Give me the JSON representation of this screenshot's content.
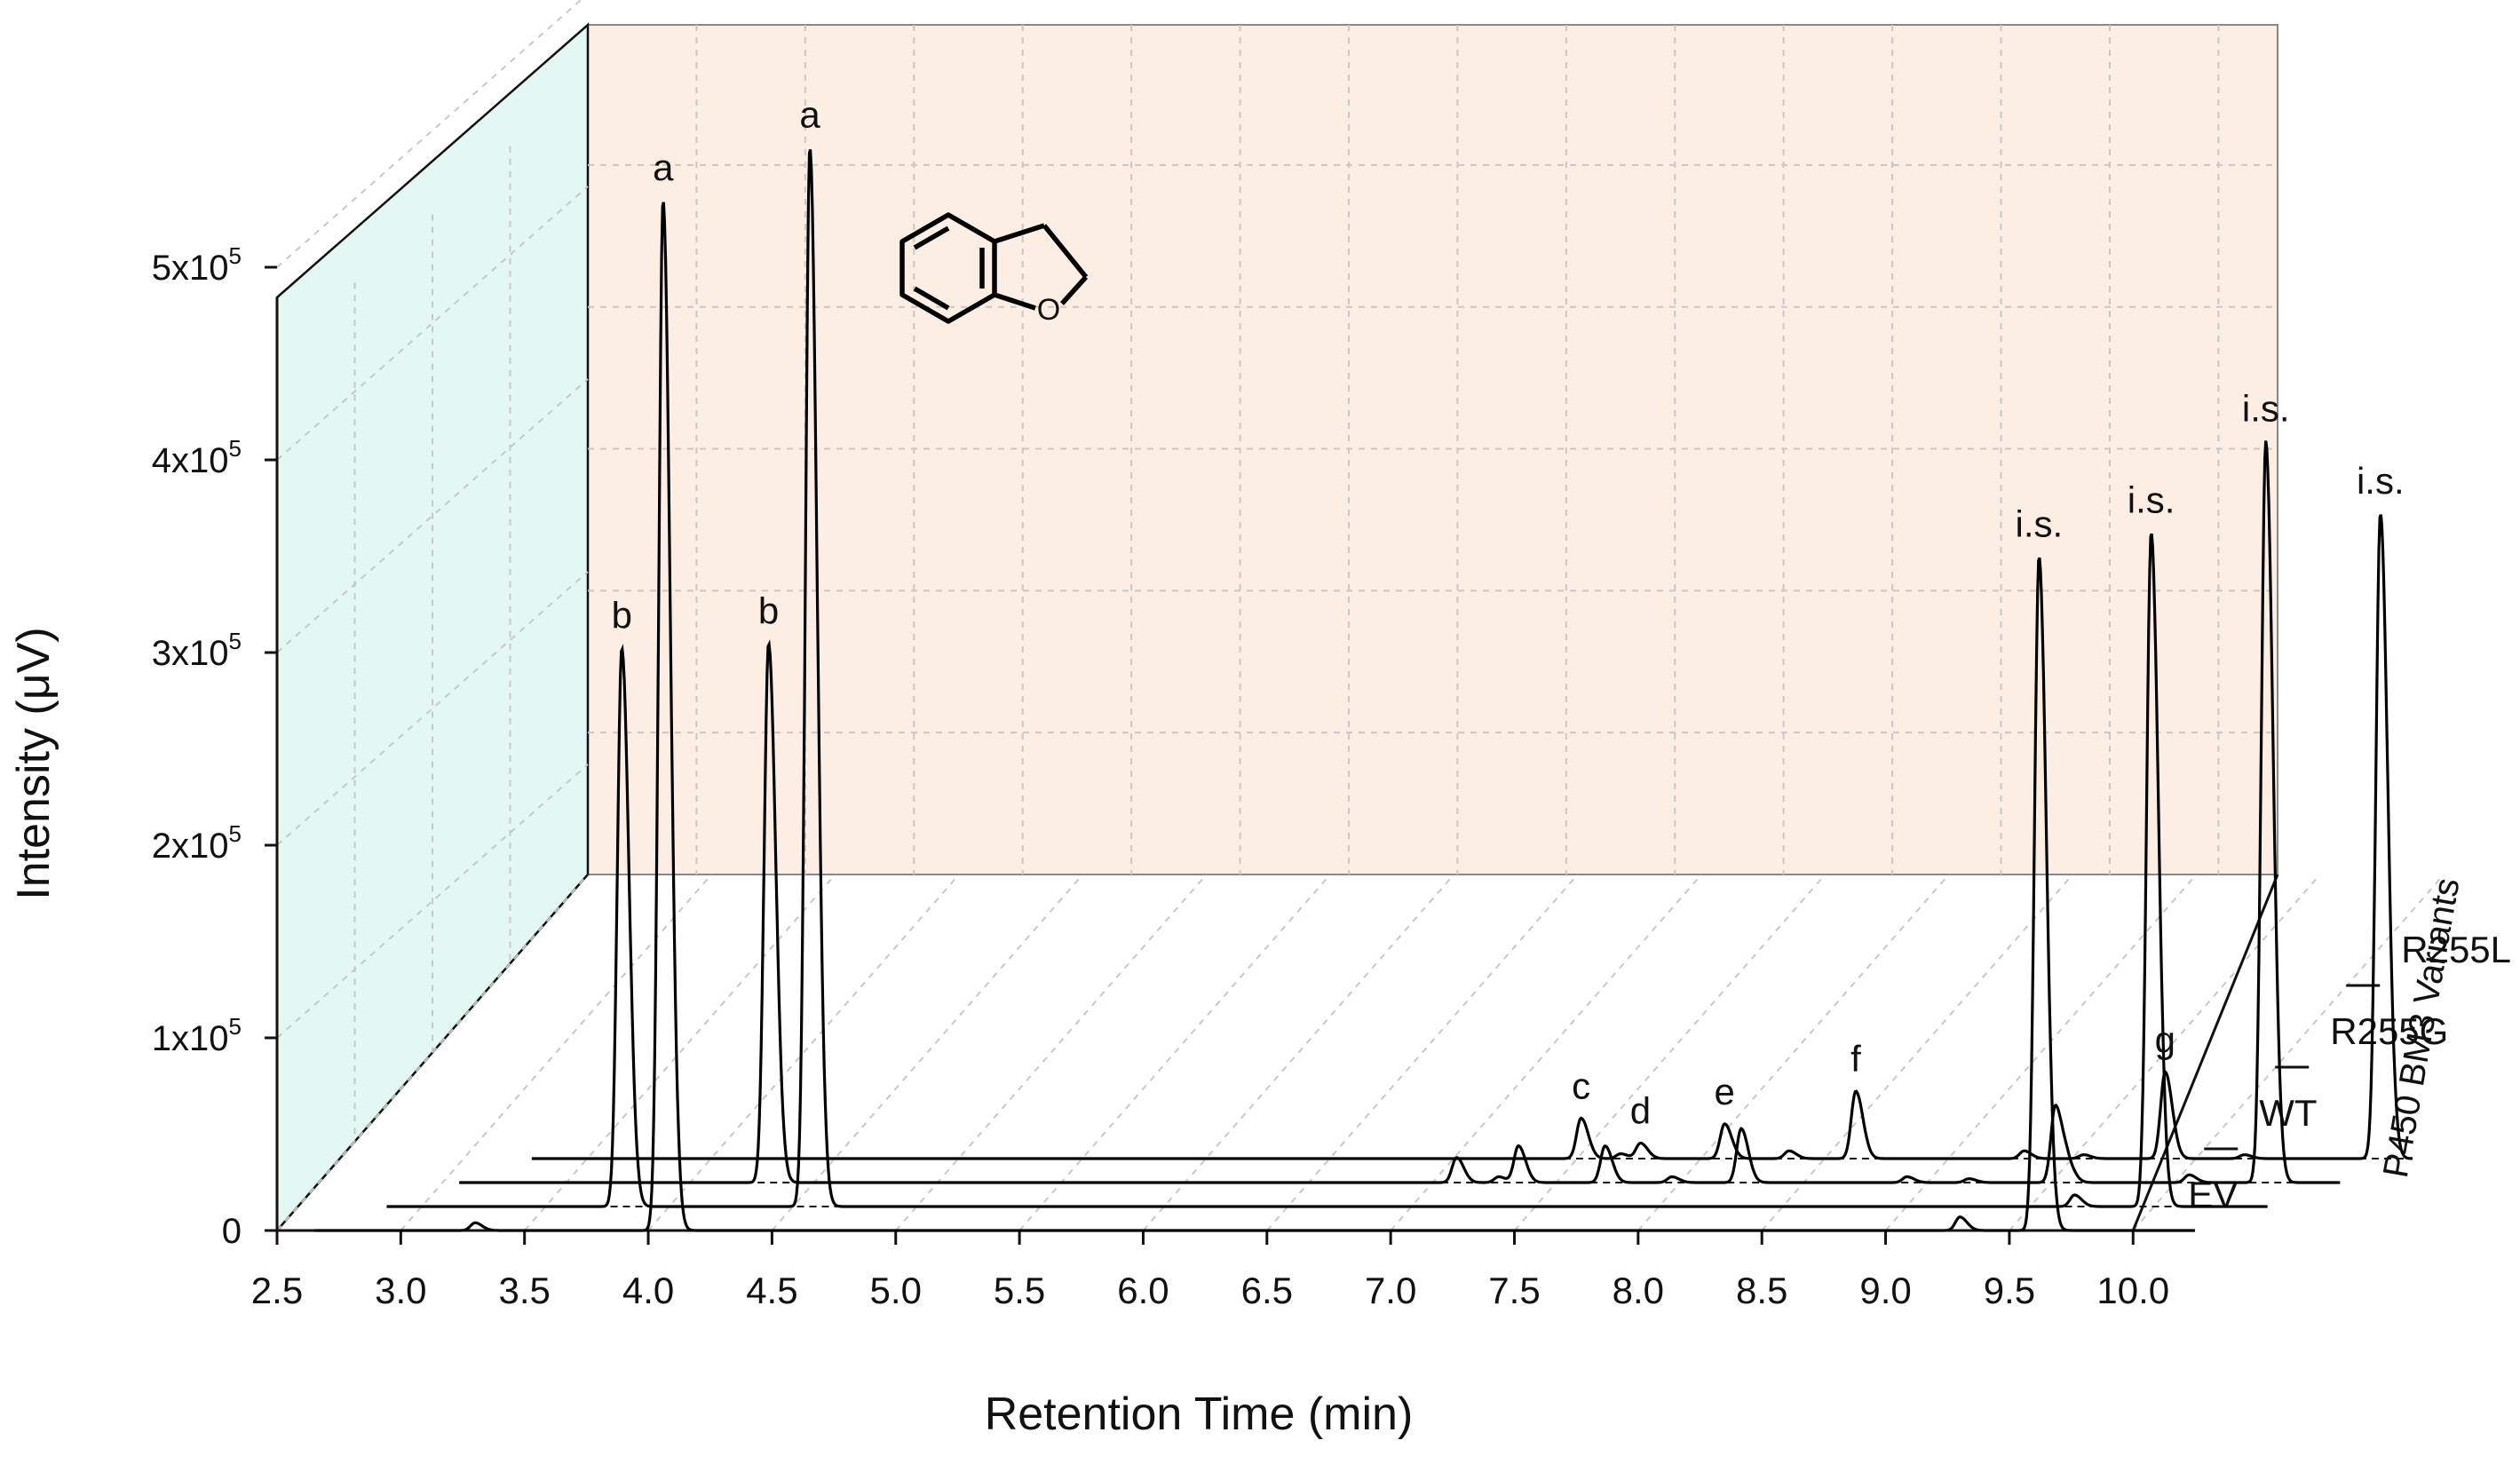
{
  "chart_data": {
    "type": "line",
    "style": "3D waterfall chromatogram",
    "xlabel": "Retention Time (min)",
    "ylabel": "Intensity (μV)",
    "zlabel": "P450 BM3 Variants",
    "xlim": [
      2.5,
      10.0
    ],
    "x_ticks": [
      "2.5",
      "3.0",
      "3.5",
      "4.0",
      "4.5",
      "5.0",
      "5.5",
      "6.0",
      "6.5",
      "7.0",
      "7.5",
      "8.0",
      "8.5",
      "9.0",
      "9.5",
      "10.0"
    ],
    "ylim": [
      0,
      500000
    ],
    "y_ticks": [
      {
        "value": 0,
        "mantissa": "0",
        "exp": ""
      },
      {
        "value": 100000,
        "mantissa": "1x10",
        "exp": "5"
      },
      {
        "value": 200000,
        "mantissa": "2x10",
        "exp": "5"
      },
      {
        "value": 300000,
        "mantissa": "3x10",
        "exp": "5"
      },
      {
        "value": 400000,
        "mantissa": "4x10",
        "exp": "5"
      },
      {
        "value": 500000,
        "mantissa": "5x10",
        "exp": "5"
      }
    ],
    "grid": true,
    "colors": {
      "line": "#000000",
      "side_wall": "#e3f8f2",
      "back_wall": "#fdeee4",
      "grid": "#c8c8c8"
    },
    "series": [
      {
        "name": "EV",
        "peaks": [
          {
            "x": 3.3,
            "y": 4000
          },
          {
            "x": 4.06,
            "y": 535000,
            "label": "a"
          },
          {
            "x": 9.3,
            "y": 7000
          },
          {
            "x": 9.62,
            "y": 350000,
            "label": "i.s."
          }
        ]
      },
      {
        "name": "WT",
        "peaks": [
          {
            "x": 3.6,
            "y": 290000,
            "label": "b"
          },
          {
            "x": 4.36,
            "y": 550000,
            "label": "a"
          },
          {
            "x": 9.47,
            "y": 6000
          },
          {
            "x": 9.78,
            "y": 350000,
            "label": "i.s."
          }
        ]
      },
      {
        "name": "R255G",
        "peaks": [
          {
            "x": 3.9,
            "y": 280000,
            "label": "b"
          },
          {
            "x": 6.68,
            "y": 13000
          },
          {
            "x": 6.85,
            "y": 3000
          },
          {
            "x": 6.93,
            "y": 19000
          },
          {
            "x": 7.28,
            "y": 19000
          },
          {
            "x": 7.55,
            "y": 3000
          },
          {
            "x": 7.83,
            "y": 28000
          },
          {
            "x": 8.5,
            "y": 3000
          },
          {
            "x": 8.75,
            "y": 2000
          },
          {
            "x": 9.1,
            "y": 40000
          },
          {
            "x": 9.15,
            "y": 8000
          },
          {
            "x": 9.64,
            "y": 4000
          },
          {
            "x": 9.95,
            "y": 385000,
            "label": "i.s."
          }
        ]
      },
      {
        "name": "R255L",
        "peaks": [
          {
            "x": 6.89,
            "y": 21000,
            "label": "c"
          },
          {
            "x": 7.05,
            "y": 2500
          },
          {
            "x": 7.13,
            "y": 8000,
            "label": "d"
          },
          {
            "x": 7.47,
            "y": 18000,
            "label": "e"
          },
          {
            "x": 7.73,
            "y": 4000
          },
          {
            "x": 8.0,
            "y": 35000,
            "label": "f"
          },
          {
            "x": 8.68,
            "y": 4000
          },
          {
            "x": 8.92,
            "y": 2000
          },
          {
            "x": 9.25,
            "y": 45000,
            "label": "g"
          },
          {
            "x": 9.57,
            "y": 2000
          },
          {
            "x": 10.12,
            "y": 335000,
            "label": "i.s."
          }
        ]
      }
    ]
  }
}
